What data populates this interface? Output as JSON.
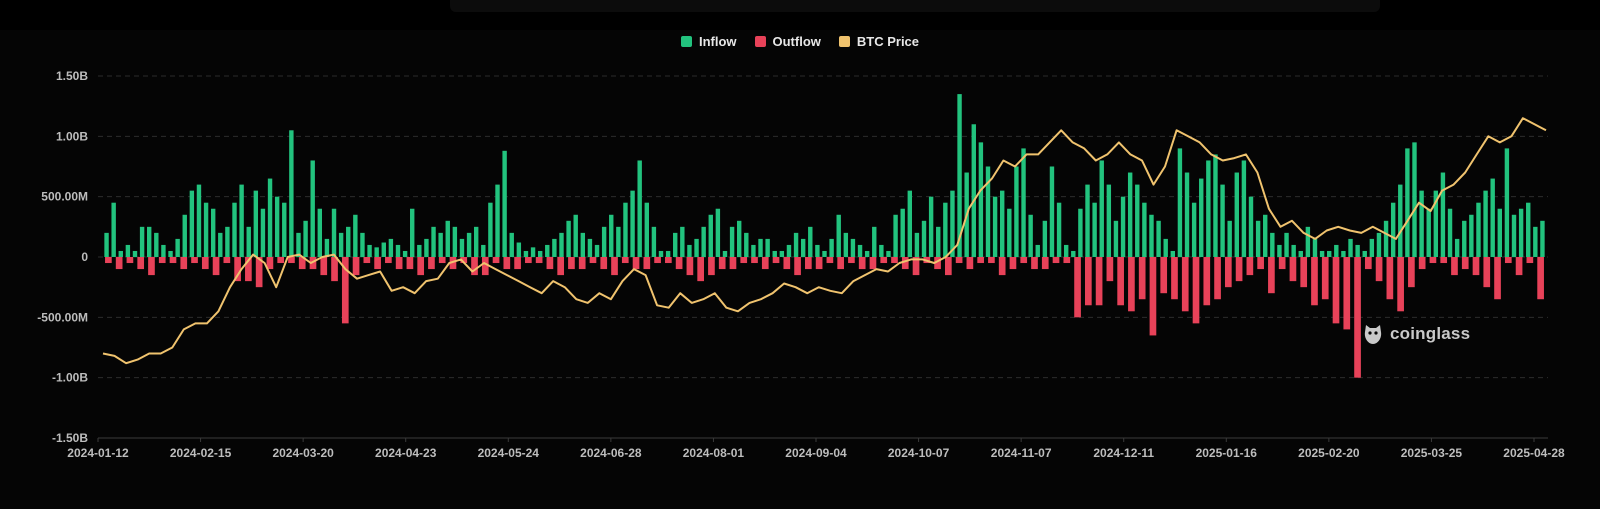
{
  "legend": [
    {
      "label": "Inflow",
      "color": "#22c37e"
    },
    {
      "label": "Outflow",
      "color": "#e84259"
    },
    {
      "label": "BTC Price",
      "color": "#f0c36e"
    }
  ],
  "watermark": {
    "text": "coinglass",
    "icon": "coinglass-logo-icon"
  },
  "chart_data": {
    "type": "bar",
    "y_ticks": [
      "1.50B",
      "1.00B",
      "500.00M",
      "0",
      "-500.00M",
      "-1.00B",
      "-1.50B"
    ],
    "ylim": [
      -1.5,
      1.5
    ],
    "y_unit": "B",
    "x_ticks": [
      "2024-01-12",
      "2024-02-15",
      "2024-03-20",
      "2024-04-23",
      "2024-05-24",
      "2024-06-28",
      "2024-08-01",
      "2024-09-04",
      "2024-10-07",
      "2024-11-07",
      "2024-12-11",
      "2025-01-16",
      "2025-02-20",
      "2025-03-25",
      "2025-04-28"
    ],
    "grid": true,
    "legend_position": "top-center",
    "series": [
      {
        "name": "Inflow",
        "type": "bar",
        "color": "#22c37e",
        "values": [
          0.2,
          0.45,
          0.05,
          0.1,
          0.05,
          0.25,
          0.25,
          0.2,
          0.1,
          0.05,
          0.15,
          0.35,
          0.55,
          0.6,
          0.45,
          0.4,
          0.2,
          0.25,
          0.45,
          0.6,
          0.25,
          0.55,
          0.4,
          0.65,
          0.5,
          0.45,
          1.05,
          0.2,
          0.3,
          0.8,
          0.4,
          0.15,
          0.4,
          0.2,
          0.25,
          0.35,
          0.2,
          0.1,
          0.08,
          0.12,
          0.15,
          0.1,
          0.05,
          0.4,
          0.1,
          0.15,
          0.25,
          0.2,
          0.3,
          0.25,
          0.15,
          0.2,
          0.25,
          0.1,
          0.45,
          0.6,
          0.88,
          0.2,
          0.12,
          0.05,
          0.08,
          0.05,
          0.1,
          0.15,
          0.2,
          0.3,
          0.35,
          0.2,
          0.15,
          0.1,
          0.25,
          0.35,
          0.25,
          0.45,
          0.55,
          0.8,
          0.45,
          0.25,
          0.05,
          0.05,
          0.2,
          0.25,
          0.1,
          0.15,
          0.25,
          0.35,
          0.4,
          0.05,
          0.25,
          0.3,
          0.2,
          0.1,
          0.15,
          0.15,
          0.05,
          0.05,
          0.1,
          0.2,
          0.15,
          0.25,
          0.1,
          0.05,
          0.15,
          0.35,
          0.2,
          0.15,
          0.1,
          0.05,
          0.25,
          0.1,
          0.05,
          0.35,
          0.4,
          0.55,
          0.2,
          0.3,
          0.5,
          0.25,
          0.45,
          0.55,
          1.35,
          0.7,
          1.1,
          0.95,
          0.75,
          0.5,
          0.55,
          0.4,
          0.75,
          0.9,
          0.35,
          0.1,
          0.3,
          0.75,
          0.45,
          0.1,
          0.05,
          0.4,
          0.6,
          0.45,
          0.8,
          0.6,
          0.3,
          0.5,
          0.7,
          0.6,
          0.45,
          0.35,
          0.3,
          0.15,
          0.05,
          0.9,
          0.7,
          0.45,
          0.65,
          0.8,
          0.85,
          0.6,
          0.3,
          0.7,
          0.8,
          0.5,
          0.3,
          0.35,
          0.2,
          0.1,
          0.2,
          0.1,
          0.05,
          0.25,
          0.15,
          0.05,
          0.05,
          0.1,
          0.05,
          0.15,
          0.1,
          0.05,
          0.15,
          0.2,
          0.3,
          0.45,
          0.6,
          0.9,
          0.95,
          0.55,
          0.4,
          0.55,
          0.7,
          0.4,
          0.15,
          0.3,
          0.35,
          0.45,
          0.55,
          0.65,
          0.4,
          0.9,
          0.35,
          0.4,
          0.45,
          0.25,
          0.3
        ]
      },
      {
        "name": "Outflow",
        "type": "bar",
        "color": "#e84259",
        "values": [
          -0.05,
          -0.1,
          -0.05,
          -0.1,
          -0.15,
          -0.05,
          -0.05,
          -0.1,
          -0.05,
          -0.1,
          -0.15,
          -0.05,
          -0.2,
          -0.2,
          -0.25,
          -0.1,
          -0.05,
          -0.05,
          -0.1,
          -0.1,
          -0.15,
          -0.2,
          -0.55,
          -0.15,
          -0.05,
          -0.1,
          -0.05,
          -0.1,
          -0.1,
          -0.15,
          -0.1,
          -0.05,
          -0.1,
          -0.05,
          -0.15,
          -0.15,
          -0.05,
          -0.1,
          -0.1,
          -0.05,
          -0.05,
          -0.1,
          -0.15,
          -0.1,
          -0.1,
          -0.05,
          -0.1,
          -0.15,
          -0.05,
          -0.1,
          -0.1,
          -0.05,
          -0.05,
          -0.1,
          -0.15,
          -0.2,
          -0.15,
          -0.1,
          -0.1,
          -0.05,
          -0.05,
          -0.1,
          -0.05,
          -0.1,
          -0.15,
          -0.1,
          -0.1,
          -0.05,
          -0.1,
          -0.05,
          -0.1,
          -0.1,
          -0.05,
          -0.05,
          -0.1,
          -0.15,
          -0.05,
          -0.1,
          -0.15,
          -0.05,
          -0.1,
          -0.05,
          -0.05,
          -0.15,
          -0.1,
          -0.05,
          -0.1,
          -0.1,
          -0.05,
          -0.05,
          -0.5,
          -0.4,
          -0.4,
          -0.2,
          -0.4,
          -0.45,
          -0.35,
          -0.65,
          -0.3,
          -0.35,
          -0.45,
          -0.55,
          -0.4,
          -0.35,
          -0.25,
          -0.2,
          -0.15,
          -0.1,
          -0.3,
          -0.1,
          -0.2,
          -0.25,
          -0.4,
          -0.35,
          -0.55,
          -0.6,
          -1.0,
          -0.1,
          -0.2,
          -0.35,
          -0.45,
          -0.25,
          -0.1,
          -0.05,
          -0.05,
          -0.15,
          -0.1,
          -0.15,
          -0.25,
          -0.35,
          -0.05,
          -0.15,
          -0.05,
          -0.35
        ]
      },
      {
        "name": "BTC Price",
        "type": "line",
        "color": "#f0c36e",
        "values": [
          -0.8,
          -0.82,
          -0.88,
          -0.85,
          -0.8,
          -0.8,
          -0.75,
          -0.6,
          -0.55,
          -0.55,
          -0.45,
          -0.25,
          -0.1,
          0.02,
          -0.05,
          -0.25,
          0.0,
          0.02,
          -0.05,
          0.0,
          0.02,
          -0.1,
          -0.18,
          -0.15,
          -0.12,
          -0.28,
          -0.25,
          -0.3,
          -0.2,
          -0.18,
          -0.05,
          -0.02,
          -0.12,
          -0.05,
          -0.1,
          -0.15,
          -0.2,
          -0.25,
          -0.3,
          -0.2,
          -0.25,
          -0.35,
          -0.38,
          -0.3,
          -0.35,
          -0.2,
          -0.1,
          -0.15,
          -0.4,
          -0.42,
          -0.3,
          -0.38,
          -0.35,
          -0.3,
          -0.42,
          -0.45,
          -0.38,
          -0.35,
          -0.3,
          -0.22,
          -0.25,
          -0.3,
          -0.25,
          -0.28,
          -0.3,
          -0.2,
          -0.15,
          -0.1,
          -0.12,
          -0.05,
          -0.02,
          -0.02,
          -0.05,
          0.0,
          0.1,
          0.4,
          0.55,
          0.65,
          0.8,
          0.75,
          0.85,
          0.85,
          0.95,
          1.05,
          0.95,
          0.9,
          0.8,
          0.85,
          0.95,
          0.85,
          0.8,
          0.6,
          0.75,
          1.05,
          1.0,
          0.95,
          0.85,
          0.8,
          0.82,
          0.85,
          0.7,
          0.4,
          0.25,
          0.3,
          0.2,
          0.15,
          0.22,
          0.25,
          0.22,
          0.2,
          0.25,
          0.2,
          0.15,
          0.3,
          0.45,
          0.38,
          0.55,
          0.6,
          0.7,
          0.85,
          1.0,
          0.95,
          1.0,
          1.15,
          1.1,
          1.05
        ]
      }
    ]
  }
}
